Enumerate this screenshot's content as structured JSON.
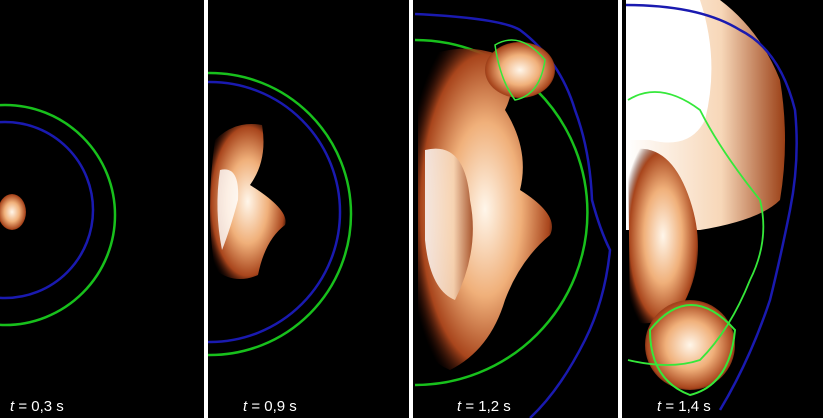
{
  "time_variable": "t",
  "panels": [
    {
      "time": "= 0,3 s"
    },
    {
      "time": "= 0,9 s"
    },
    {
      "time": "= 1,2 s"
    },
    {
      "time": "= 1,4 s"
    }
  ]
}
